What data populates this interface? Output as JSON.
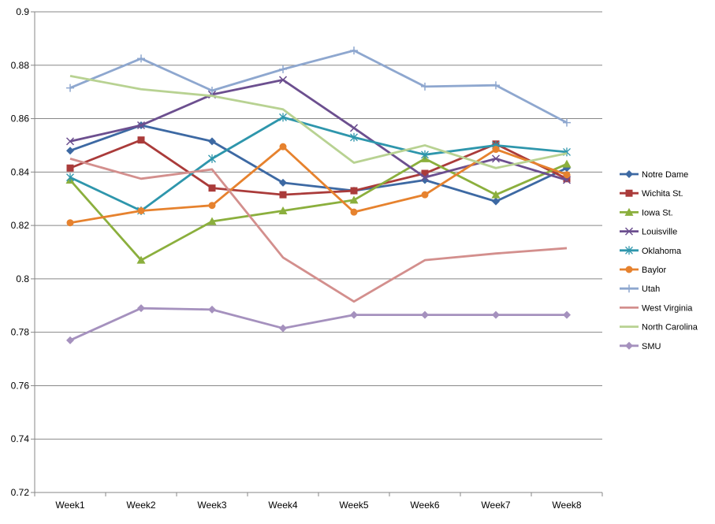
{
  "chart_data": {
    "type": "line",
    "title": "",
    "xlabel": "",
    "ylabel": "",
    "categories": [
      "Week1",
      "Week2",
      "Week3",
      "Week4",
      "Week5",
      "Week6",
      "Week7",
      "Week8"
    ],
    "ylim": [
      0.72,
      0.9
    ],
    "yticks": [
      "0.72",
      "0.74",
      "0.76",
      "0.78",
      "0.8",
      "0.82",
      "0.84",
      "0.86",
      "0.88",
      "0.9"
    ],
    "grid": "horizontal",
    "legend": "right",
    "series": [
      {
        "name": "Notre Dame",
        "color": "#3D69A3",
        "marker": "diamond",
        "values": [
          0.848,
          0.8575,
          0.8515,
          0.836,
          0.833,
          0.837,
          0.829,
          0.8415
        ]
      },
      {
        "name": "Wichita St.",
        "color": "#AA3B3A",
        "marker": "square",
        "values": [
          0.8415,
          0.852,
          0.834,
          0.8315,
          0.833,
          0.8395,
          0.8505,
          0.8375
        ]
      },
      {
        "name": "Iowa St.",
        "color": "#8BAF3D",
        "marker": "triangle",
        "values": [
          0.837,
          0.807,
          0.8215,
          0.8255,
          0.8295,
          0.845,
          0.8315,
          0.843
        ]
      },
      {
        "name": "Louisville",
        "color": "#6C4F8F",
        "marker": "x",
        "values": [
          0.8515,
          0.8575,
          0.869,
          0.8745,
          0.8565,
          0.838,
          0.845,
          0.837
        ]
      },
      {
        "name": "Oklahoma",
        "color": "#2E96AC",
        "marker": "star",
        "values": [
          0.838,
          0.8255,
          0.845,
          0.8605,
          0.853,
          0.8465,
          0.85,
          0.8475
        ]
      },
      {
        "name": "Baylor",
        "color": "#E6822E",
        "marker": "circle",
        "values": [
          0.821,
          0.8255,
          0.8275,
          0.8495,
          0.825,
          0.8315,
          0.8485,
          0.839
        ]
      },
      {
        "name": "Utah",
        "color": "#8EA7CF",
        "marker": "plus",
        "values": [
          0.8715,
          0.8825,
          0.8705,
          0.8785,
          0.8855,
          0.872,
          0.8725,
          0.8585
        ]
      },
      {
        "name": "West Virginia",
        "color": "#D38F8D",
        "marker": "none",
        "values": [
          0.845,
          0.8375,
          0.841,
          0.808,
          0.7915,
          0.807,
          0.8095,
          0.8115
        ]
      },
      {
        "name": "North Carolina",
        "color": "#B8D292",
        "marker": "none",
        "values": [
          0.876,
          0.871,
          0.8685,
          0.8635,
          0.8435,
          0.85,
          0.8415,
          0.847
        ]
      },
      {
        "name": "SMU",
        "color": "#A591BE",
        "marker": "diamond",
        "values": [
          0.777,
          0.789,
          0.7885,
          0.7815,
          0.7865,
          0.7865,
          0.7865,
          0.7865
        ]
      }
    ]
  }
}
